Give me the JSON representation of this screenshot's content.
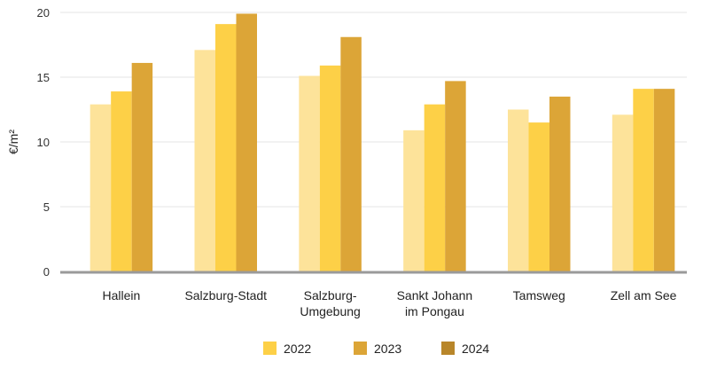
{
  "chart_data": {
    "type": "bar",
    "title": "",
    "xlabel": "",
    "ylabel": "€/m²",
    "ylim": [
      0,
      20
    ],
    "yticks": [
      0,
      5,
      10,
      15,
      20
    ],
    "grid": true,
    "legend_position": "bottom",
    "categories": [
      [
        "Hallein"
      ],
      [
        "Salzburg-Stadt"
      ],
      [
        "Salzburg-",
        "Umgebung"
      ],
      [
        "Sankt Johann",
        "im Pongau"
      ],
      [
        "Tamsweg"
      ],
      [
        "Zell am See"
      ]
    ],
    "series": [
      {
        "name": "2022",
        "color": "#fde39a",
        "values": [
          12.9,
          17.1,
          15.1,
          10.9,
          12.5,
          12.1
        ]
      },
      {
        "name": "2023",
        "color": "#fdd047",
        "values": [
          13.9,
          19.1,
          15.9,
          12.9,
          11.5,
          14.1
        ]
      },
      {
        "name": "2024",
        "color": "#dca537",
        "values": [
          16.1,
          19.9,
          18.1,
          14.7,
          13.5,
          14.1
        ]
      }
    ],
    "legend_colors": [
      "#fdd047",
      "#dca537",
      "#b8862a"
    ]
  }
}
